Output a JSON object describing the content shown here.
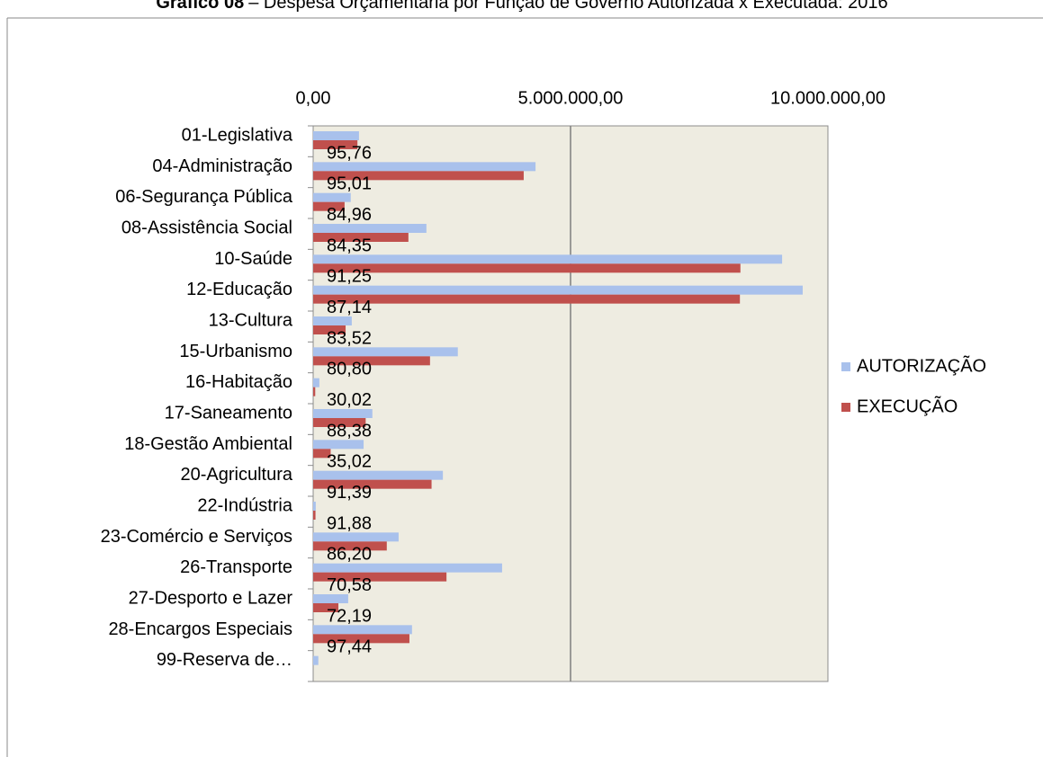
{
  "chart_data": {
    "type": "bar",
    "orientation": "horizontal",
    "title": "Gráfico 08",
    "subtitle": "– Despesa Orçamentária por Função de Governo Autorizada x Executada: 2016",
    "categories": [
      "01-Legislativa",
      "04-Administração",
      "06-Segurança Pública",
      "08-Assistência Social",
      "10-Saúde",
      "12-Educação",
      "13-Cultura",
      "15-Urbanismo",
      "16-Habitação",
      "17-Saneamento",
      "18-Gestão Ambiental",
      "20-Agricultura",
      "22-Indústria",
      "23-Comércio e Serviços",
      "26-Transporte",
      "27-Desporto e Lazer",
      "28-Encargos Especiais",
      "99-Reserva de…"
    ],
    "series": [
      {
        "name": "AUTORIZAÇÃO",
        "color": "#a9c1ec",
        "values": [
          890000,
          4320000,
          730000,
          2200000,
          9110000,
          9510000,
          750000,
          2810000,
          120000,
          1150000,
          980000,
          2520000,
          50000,
          1660000,
          3670000,
          680000,
          1920000,
          100000
        ]
      },
      {
        "name": "EXECUÇÃO",
        "color": "#c0504d",
        "values": [
          860000,
          4090000,
          610000,
          1850000,
          8300000,
          8290000,
          630000,
          2270000,
          40000,
          1020000,
          340000,
          2300000,
          45000,
          1430000,
          2590000,
          490000,
          1870000,
          null
        ]
      }
    ],
    "annotations": [
      {
        "value": 95.76,
        "label": "95,76"
      },
      {
        "value": 95.01,
        "label": "95,01"
      },
      {
        "value": 84.96,
        "label": "84,96"
      },
      {
        "value": 84.35,
        "label": "84,35"
      },
      {
        "value": 91.25,
        "label": "91,25"
      },
      {
        "value": 87.14,
        "label": "87,14"
      },
      {
        "value": 83.52,
        "label": "83,52"
      },
      {
        "value": 80.8,
        "label": "80,80"
      },
      {
        "value": 30.02,
        "label": "30,02"
      },
      {
        "value": 88.38,
        "label": "88,38"
      },
      {
        "value": 35.02,
        "label": "35,02"
      },
      {
        "value": 91.39,
        "label": "91,39"
      },
      {
        "value": 91.88,
        "label": "91,88"
      },
      {
        "value": 86.2,
        "label": "86,20"
      },
      {
        "value": 70.58,
        "label": "70,58"
      },
      {
        "value": 72.19,
        "label": "72,19"
      },
      {
        "value": 97.44,
        "label": "97,44"
      },
      null
    ],
    "xlim": [
      0,
      10000000
    ],
    "xticks": [
      {
        "value": 0,
        "label": "0,00"
      },
      {
        "value": 5000000,
        "label": "5.000.000,00"
      },
      {
        "value": 10000000,
        "label": "10.000.000,00"
      }
    ],
    "grid": true,
    "legend": "right"
  }
}
